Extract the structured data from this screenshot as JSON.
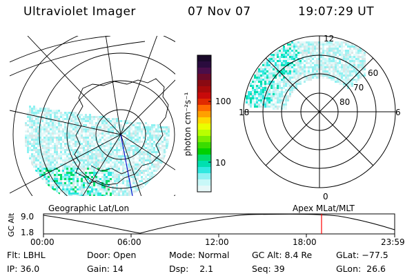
{
  "header": {
    "instrument": "Ultraviolet Imager",
    "date": "07 Nov 07",
    "time": "19:07:29 UT"
  },
  "colorbar": {
    "unit_label": "photon cm⁻²s⁻¹",
    "ticks": [
      "100",
      "10"
    ],
    "colors": [
      "#1a0a2a",
      "#2a0c3e",
      "#4a0e4a",
      "#6a0a2a",
      "#8a0a12",
      "#a80a0a",
      "#c80a0a",
      "#e02a00",
      "#ff6a00",
      "#ffa000",
      "#ffd800",
      "#eaff00",
      "#b8ff00",
      "#7aee00",
      "#3adc00",
      "#00d000",
      "#00dc6a",
      "#00e0b0",
      "#30e8e0",
      "#8ef2f2",
      "#c8f8f8",
      "#e6f8f8"
    ]
  },
  "geo_panel": {
    "label": "Geographic Lat/Lon"
  },
  "mag_panel": {
    "label": "Apex MLat/MLT",
    "mlt_labels": {
      "top": "12",
      "left": "18",
      "right": "6",
      "bottom": "0"
    },
    "lat_labels": [
      "60",
      "70",
      "80"
    ]
  },
  "altitude_plot": {
    "ylabel": "GC Alt",
    "yticks": [
      "9.0",
      "1.8"
    ],
    "xticks": [
      "00:00",
      "06:00",
      "12:00",
      "18:00",
      "23:59"
    ],
    "marker_color": "#ff0000"
  },
  "status": {
    "flt_label": "Flt:",
    "flt_value": "LBHL",
    "ip_label": "IP:",
    "ip_value": "36.0",
    "door_label": "Door:",
    "door_value": "Open",
    "gain_label": "Gain:",
    "gain_value": "14",
    "mode_label": "Mode:",
    "mode_value": "Normal",
    "dsp_label": "Dsp:",
    "dsp_value": "2.1",
    "gcalt_label": "GC Alt:",
    "gcalt_value": "8.4 Re",
    "seq_label": "Seq:",
    "seq_value": "39",
    "glat_label": "GLat:",
    "glat_value": "−77.5",
    "glon_label": "GLon:",
    "glon_value": "26.6"
  }
}
